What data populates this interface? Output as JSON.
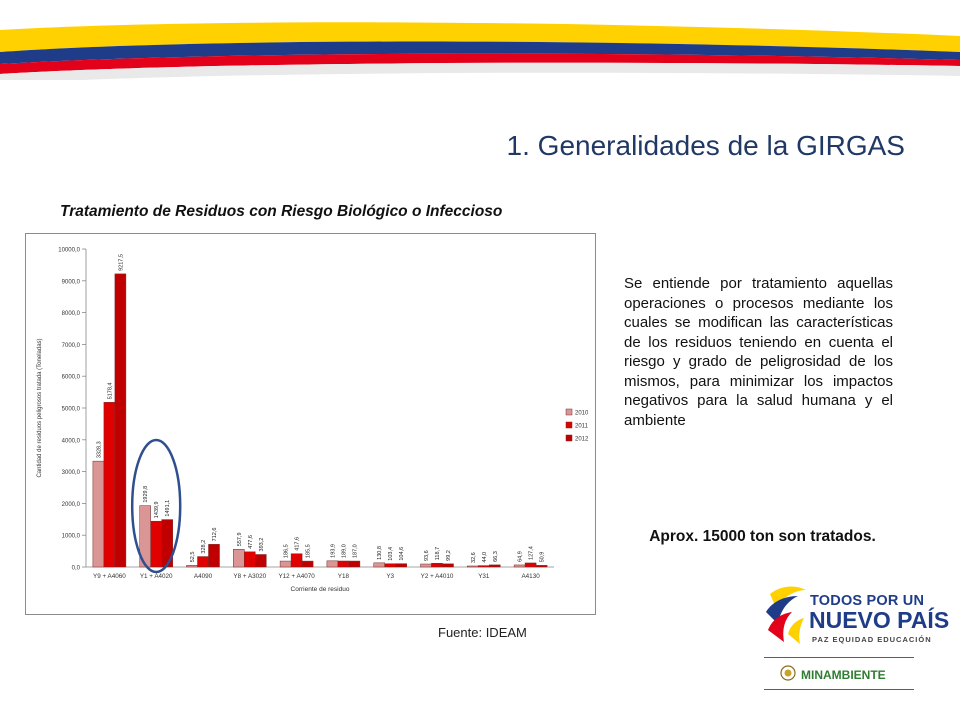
{
  "slide": {
    "title": "1. Generalidades de la GIRGAS",
    "chart_heading": "Tratamiento de Residuos con Riesgo Biológico o Infeccioso",
    "source": "Fuente: IDEAM",
    "description": "Se entiende por tratamiento aquellas operaciones o procesos mediante los cuales se modifican las características de los residuos teniendo en cuenta el riesgo y grado de peligrosidad de los mismos, para minimizar los impactos negativos para la salud humana y el ambiente",
    "summary": "Aprox. 15000 ton son tratados."
  },
  "logo": {
    "line1": "TODOS POR UN",
    "line2": "NUEVO PAÍS",
    "line3": "PAZ  EQUIDAD  EDUCACIÓN",
    "ministry": "MINAMBIENTE"
  },
  "colors": {
    "title": "#1f3864",
    "series_2010": "#d99694",
    "series_2011": "#e00000",
    "series_2012": "#c00000",
    "banner_yellow": "#ffd100",
    "banner_blue": "#1f3c88",
    "banner_red": "#e3001b",
    "highlight_ellipse": "#2f4f8f"
  },
  "chart_data": {
    "type": "bar",
    "title": "",
    "xlabel": "Corriente de residuo",
    "ylabel": "Cantidad de residuos peligrosos tratada (Toneladas)",
    "ylim": [
      0,
      10000
    ],
    "yticks": [
      "0,0",
      "1000,0",
      "2000,0",
      "3000,0",
      "4000,0",
      "5000,0",
      "6000,0",
      "7000,0",
      "8000,0",
      "9000,0",
      "10000,0"
    ],
    "categories": [
      "Y9 + A4060",
      "Y1 + A4020",
      "A4090",
      "Y8 + A3020",
      "Y12 + A4070",
      "Y18",
      "Y3",
      "Y2 + A4010",
      "Y31",
      "A4130"
    ],
    "series": [
      {
        "name": "2010",
        "values": [
          3328.3,
          1929.8,
          52.5,
          557.9,
          186.5,
          193.9,
          130.8,
          93.6,
          32.6,
          64.9
        ],
        "labels": [
          "3328,3",
          "1929,8",
          "52,5",
          "557,9",
          "186,5",
          "193,9",
          "130,8",
          "93,6",
          "32,6",
          "64,9"
        ]
      },
      {
        "name": "2011",
        "values": [
          5178.4,
          1439.9,
          328.2,
          477.6,
          417.6,
          189.0,
          103.4,
          118.7,
          44.0,
          127.4
        ],
        "labels": [
          "5178,4",
          "1439,9",
          "328,2",
          "477,6",
          "417,6",
          "189,0",
          "103,4",
          "118,7",
          "44,0",
          "127,4"
        ]
      },
      {
        "name": "2012",
        "values": [
          9217.5,
          1491.1,
          712.6,
          393.2,
          185.5,
          187.0,
          104.6,
          99.2,
          66.3,
          50.9
        ],
        "labels": [
          "9217,5",
          "1491,1",
          "712,6",
          "393,2",
          "185,5",
          "187,0",
          "104,6",
          "99,2",
          "66,3",
          "50,9"
        ]
      }
    ],
    "legend": {
      "position": "right"
    },
    "grid": false,
    "annotation": "ellipse highlighting Y1 + A4020"
  }
}
